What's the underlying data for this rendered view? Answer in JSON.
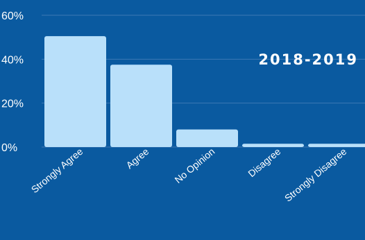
{
  "chart_data": {
    "type": "bar",
    "title": "2018-2019",
    "categories": [
      "Strongly Agree",
      "Agree",
      "No Opinion",
      "Disagree",
      "Strongly Disagree"
    ],
    "values": [
      50.5,
      37.5,
      8,
      1.5,
      1.5
    ],
    "ylim": [
      0,
      60
    ],
    "yticks": [
      0,
      20,
      40,
      60
    ],
    "ytick_labels": [
      "0%",
      "20%",
      "40%",
      "60%"
    ],
    "grid": true,
    "colors": {
      "background": "#0a5aa0",
      "bar": "#b9e0fa",
      "grid": "#3d78b4",
      "text": "#ffffff"
    }
  }
}
